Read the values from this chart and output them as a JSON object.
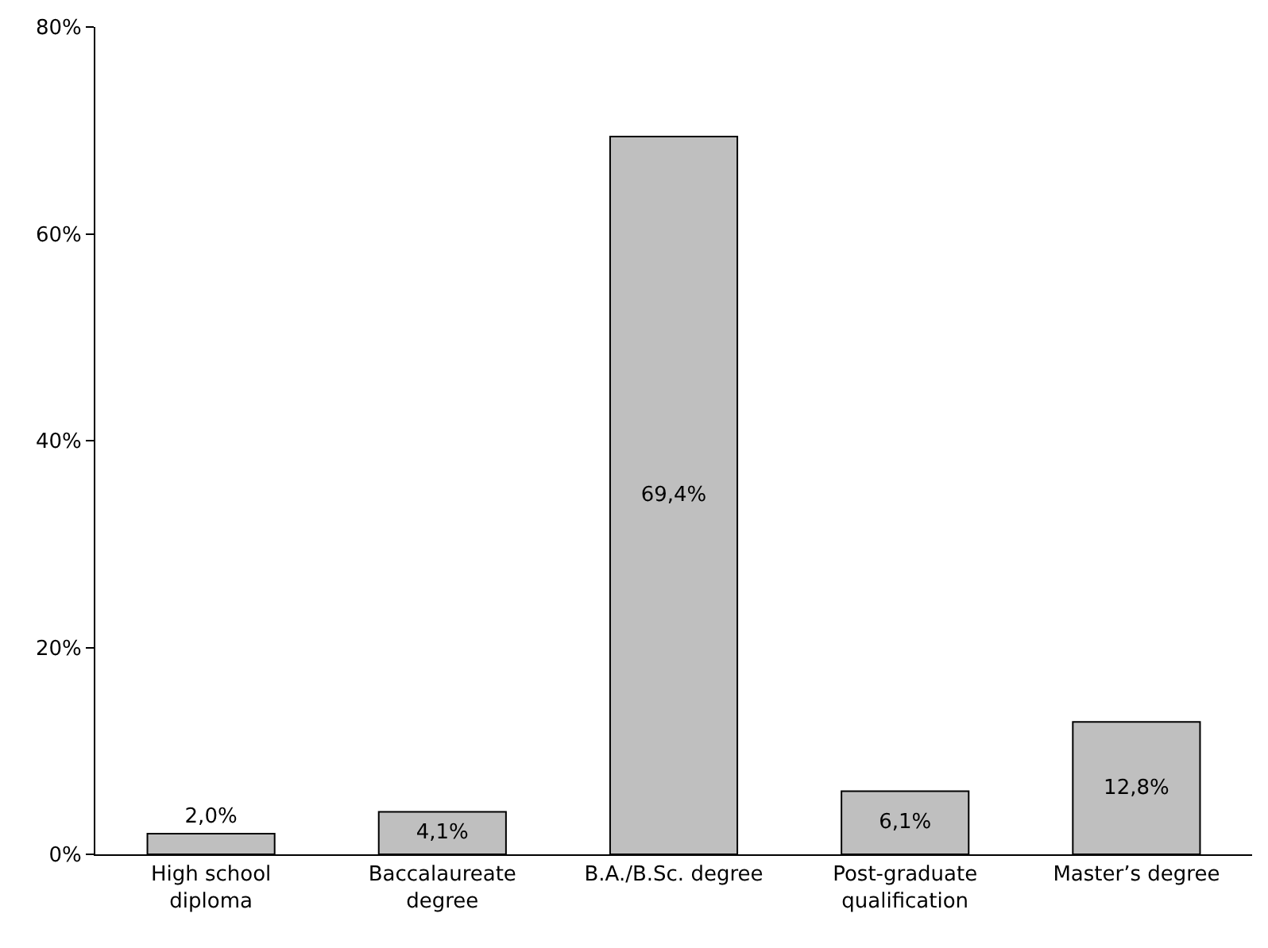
{
  "chart_data": {
    "type": "bar",
    "categories": [
      "High school diploma",
      "Baccalaureate degree",
      "B.A./B.Sc. degree",
      "Post-graduate qualification",
      "Master’s degree"
    ],
    "values": [
      2.0,
      4.1,
      69.4,
      6.1,
      12.8
    ],
    "value_labels": [
      "2,0%",
      "4,1%",
      "69,4%",
      "6,1%",
      "12,8%"
    ],
    "color": "#bfbfbf",
    "ylim": [
      0,
      80
    ],
    "yticks": [
      {
        "value": 0,
        "label": "0%"
      },
      {
        "value": 20,
        "label": "20%"
      },
      {
        "value": 40,
        "label": "40%"
      },
      {
        "value": 60,
        "label": "60%"
      },
      {
        "value": 80,
        "label": "80%"
      }
    ],
    "legend": false
  }
}
